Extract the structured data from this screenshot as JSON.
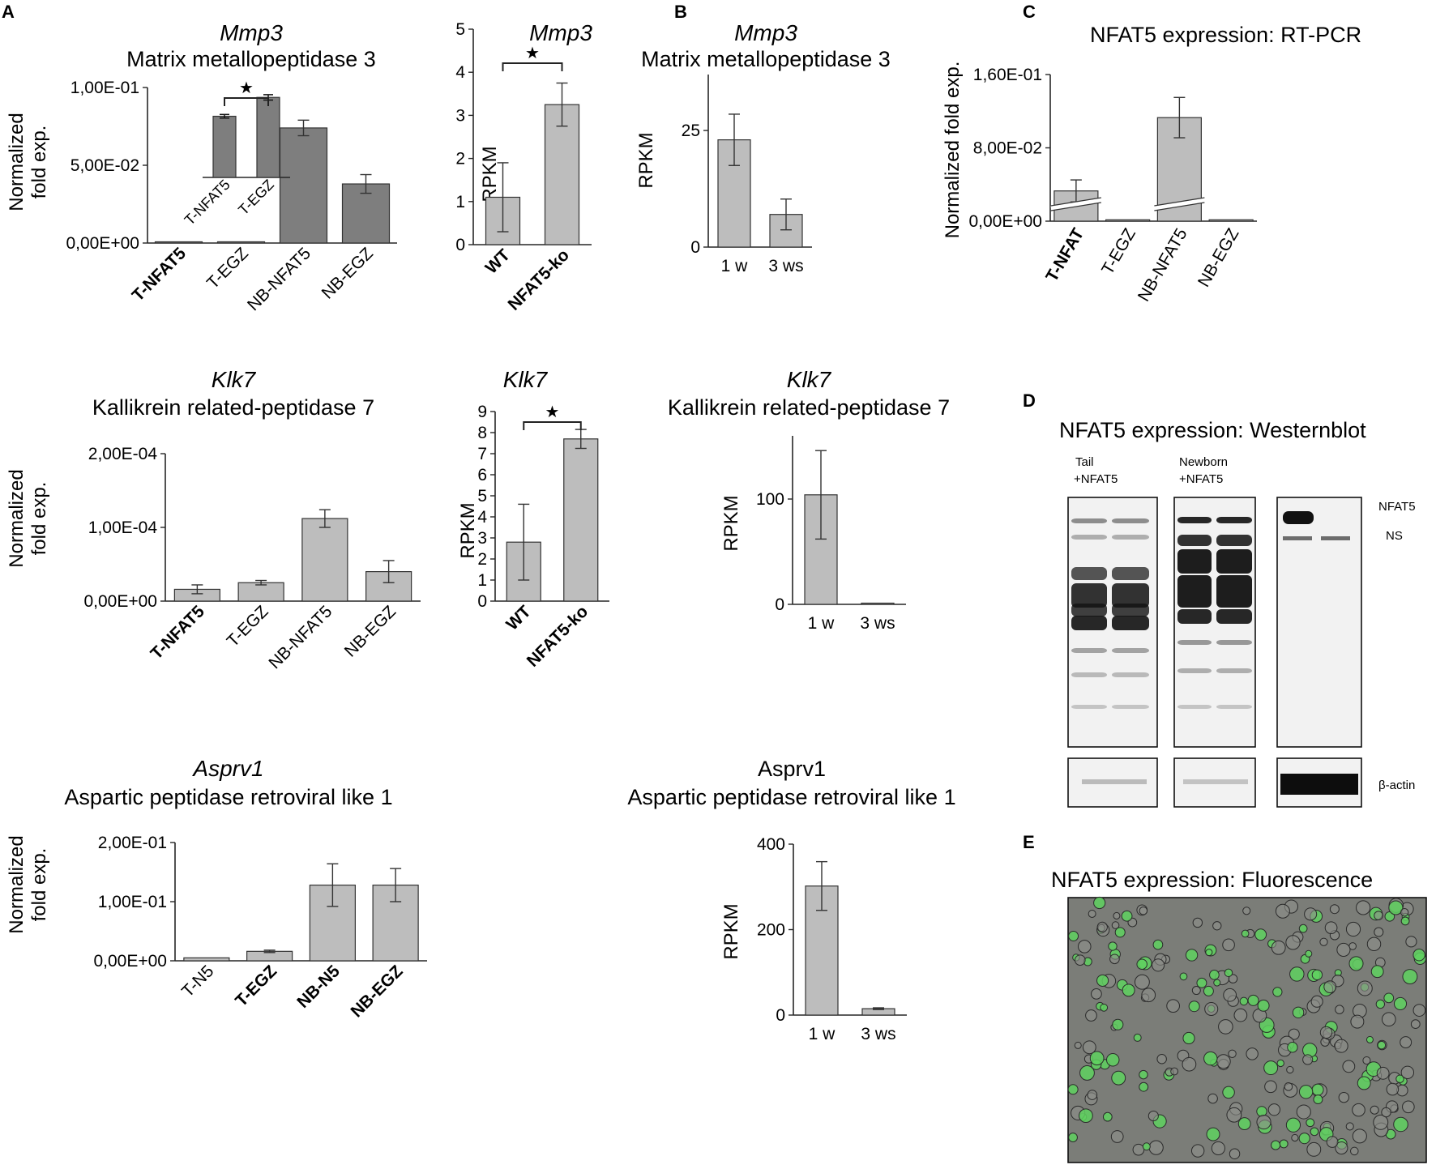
{
  "colors": {
    "bar_dark": "#7e7e7e",
    "bar_light": "#bdbdbd",
    "axis": "#262626",
    "blot_bg": "#f2f2f2",
    "gfp": "#5fd15f"
  },
  "panels": {
    "A": {
      "letter": "A"
    },
    "B": {
      "letter": "B"
    },
    "C": {
      "letter": "C",
      "title": "NFAT5  expression: RT-PCR"
    },
    "D": {
      "letter": "D",
      "title": "NFAT5 expression: Westernblot",
      "lane_groups": [
        "Tail\n+NFAT5",
        "Newborn\n+NFAT5"
      ],
      "band_labels": {
        "target": "NFAT5",
        "nonspecific": "NS",
        "loading": "β-actin"
      }
    },
    "E": {
      "letter": "E",
      "title": "NFAT5 expression: Fluorescence"
    }
  },
  "chart_data": [
    {
      "id": "A_mmp3_rtpcr",
      "type": "bar",
      "gene": "Mmp3",
      "title": "Matrix metallopeptidase 3",
      "ylabel": "Normalized\nfold exp.",
      "ylim": [
        0,
        0.1
      ],
      "yticks": [
        "0,00E+00",
        "5,00E-02",
        "1,00E-01"
      ],
      "categories": [
        "T-NFAT5",
        "T-EGZ",
        "NB-NFAT5",
        "NB-EGZ"
      ],
      "bold_categories": [
        "T-NFAT5"
      ],
      "values": [
        0.0003,
        0.0008,
        0.074,
        0.038
      ],
      "errors": [
        0.0002,
        0.0003,
        0.005,
        0.006
      ],
      "inset": {
        "categories": [
          "T-NFAT5",
          "T-EGZ"
        ],
        "values": [
          0.68,
          0.89
        ],
        "errors": [
          0.02,
          0.03
        ],
        "significance": "★"
      }
    },
    {
      "id": "A_mmp3_rpkm",
      "type": "bar",
      "gene": "Mmp3",
      "ylabel": "RPKM",
      "ylim": [
        0,
        5
      ],
      "yticks": [
        "0",
        "1",
        "2",
        "3",
        "4",
        "5"
      ],
      "categories": [
        "WT",
        "NFAT5-ko"
      ],
      "bold_categories": [
        "WT",
        "NFAT5-ko"
      ],
      "values": [
        1.1,
        3.25
      ],
      "errors": [
        0.8,
        0.5
      ],
      "significance": "★"
    },
    {
      "id": "B_mmp3_rpkm",
      "type": "bar",
      "gene": "Mmp3",
      "title": "Matrix metallopeptidase 3",
      "ylabel": "RPKM",
      "ylim": [
        0,
        37
      ],
      "yticks": [
        "0",
        "25"
      ],
      "categories": [
        "1 w",
        "3 ws"
      ],
      "values": [
        23,
        7
      ],
      "errors": [
        5.5,
        3.3
      ]
    },
    {
      "id": "C_nfat5_rtpcr",
      "type": "bar",
      "ylabel": "Normalized  fold exp.",
      "ylim": [
        0,
        0.16
      ],
      "yticks": [
        "0,00E+00",
        "8,00E-02",
        "1,60E-01"
      ],
      "categories": [
        "T-NFAT",
        "T-EGZ",
        "NB-NFAT5",
        "NB-EGZ"
      ],
      "bold_categories": [
        "T-NFAT"
      ],
      "values": [
        0.033,
        0.0015,
        0.113,
        0.0015
      ],
      "errors": [
        0.012,
        0.0005,
        0.022,
        0.0005
      ],
      "axis_break": true
    },
    {
      "id": "A_klk7_rtpcr",
      "type": "bar",
      "gene": "Klk7",
      "title": "Kallikrein related-peptidase 7",
      "ylabel": "Normalized\nfold exp.",
      "ylim": [
        0,
        0.0002
      ],
      "yticks": [
        "0,00E+00",
        "1,00E-04",
        "2,00E-04"
      ],
      "categories": [
        "T-NFAT5",
        "T-EGZ",
        "NB-NFAT5",
        "NB-EGZ"
      ],
      "bold_categories": [
        "T-NFAT5"
      ],
      "values": [
        1.6e-05,
        2.5e-05,
        0.000112,
        4e-05
      ],
      "errors": [
        6e-06,
        3e-06,
        1.2e-05,
        1.5e-05
      ]
    },
    {
      "id": "A_klk7_rpkm",
      "type": "bar",
      "gene": "Klk7",
      "ylabel": "RPKM",
      "ylim": [
        0,
        9
      ],
      "yticks": [
        "0",
        "1",
        "2",
        "3",
        "4",
        "5",
        "6",
        "7",
        "8",
        "9"
      ],
      "categories": [
        "WT",
        "NFAT5-ko"
      ],
      "bold_categories": [
        "WT",
        "NFAT5-ko"
      ],
      "values": [
        2.8,
        7.7
      ],
      "errors": [
        1.8,
        0.45
      ],
      "significance": "★"
    },
    {
      "id": "B_klk7_rpkm",
      "type": "bar",
      "gene": "Klk7",
      "title": "Kallikrein related-peptidase 7",
      "ylabel": "RPKM",
      "ylim": [
        0,
        160
      ],
      "yticks": [
        "0",
        "100"
      ],
      "categories": [
        "1 w",
        "3 ws"
      ],
      "values": [
        104,
        1
      ],
      "errors": [
        42,
        0.5
      ]
    },
    {
      "id": "A_asprv1_rtpcr",
      "type": "bar",
      "gene": "Asprv1",
      "title": "Aspartic peptidase retroviral like 1",
      "ylabel": "Normalized\nfold exp.",
      "ylim": [
        0,
        0.2
      ],
      "yticks": [
        "0,00E+00",
        "1,00E-01",
        "2,00E-01"
      ],
      "categories": [
        "T-N5",
        "T-EGZ",
        "NB-N5",
        "NB-EGZ"
      ],
      "bold_categories": [
        "T-EGZ",
        "NB-N5",
        "NB-EGZ"
      ],
      "values": [
        0.005,
        0.016,
        0.128,
        0.128
      ],
      "errors": [
        0.001,
        0.002,
        0.036,
        0.028
      ]
    },
    {
      "id": "B_asprv1_rpkm",
      "type": "bar",
      "gene": "Asprv1",
      "title": "Aspartic peptidase retroviral like 1",
      "ylabel": "RPKM",
      "ylim": [
        0,
        400
      ],
      "yticks": [
        "0",
        "200",
        "400"
      ],
      "categories": [
        "1 w",
        "3 ws"
      ],
      "values": [
        302,
        15
      ],
      "errors": [
        57,
        2
      ]
    }
  ]
}
